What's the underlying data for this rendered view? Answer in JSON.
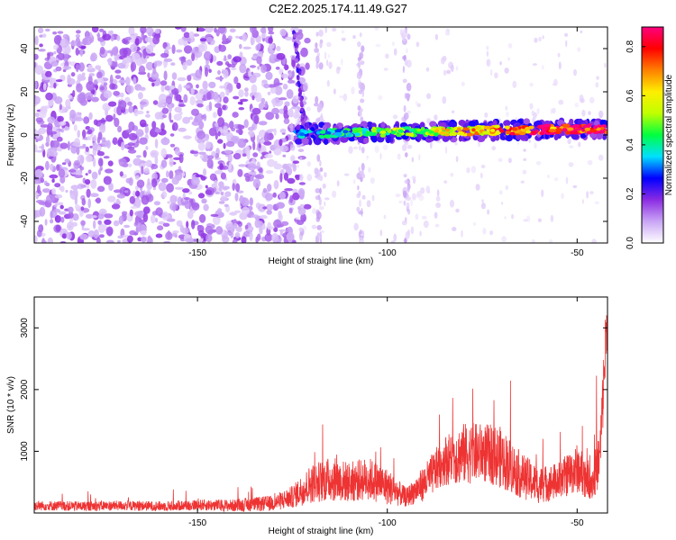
{
  "title": "C2E2.2025.174.11.49.G27",
  "chart_data": [
    {
      "type": "heatmap",
      "xlabel": "Height of straight line (km)",
      "ylabel": "Frequency (Hz)",
      "xlim": [
        -193,
        -42
      ],
      "ylim": [
        -50,
        50
      ],
      "x_ticks": [
        "-150",
        "-100",
        "-50"
      ],
      "y_ticks": [
        "-40",
        "-20",
        "0",
        "20",
        "40"
      ],
      "colorbar": {
        "label": "Normalized spectral amplitude",
        "range": [
          0.0,
          0.88
        ],
        "ticks": [
          "0.0",
          "0.2",
          "0.4",
          "0.6",
          "0.8"
        ],
        "colors": [
          "#ffffff",
          "#c9a5f5",
          "#8b2be2",
          "#0000ff",
          "#00e0ff",
          "#00ff40",
          "#c0ff00",
          "#ffee00",
          "#ff8000",
          "#ff0000",
          "#ff0080"
        ]
      },
      "features": {
        "noise_region_x": [
          -193,
          -124
        ],
        "noise_level": 0.08,
        "signal_band_x": [
          -124,
          -42
        ],
        "signal_band_freq_center": 3,
        "signal_band_halfwidth_hz": 4,
        "signal_peak_amplitude": 0.88,
        "vertical_streaks_x": [
          -118,
          -107,
          -95
        ]
      }
    },
    {
      "type": "line",
      "xlabel": "Height of straight line (km)",
      "ylabel": "SNR (10 * v/v)",
      "xlim": [
        -193,
        -42
      ],
      "ylim": [
        0,
        3500
      ],
      "x_ticks": [
        "-150",
        "-100",
        "-50"
      ],
      "y_ticks": [
        "1000",
        "2000",
        "3000"
      ],
      "color": "#ee3333",
      "x": [
        -193,
        -180,
        -170,
        -160,
        -150,
        -140,
        -130,
        -125,
        -120,
        -115,
        -110,
        -105,
        -100,
        -95,
        -90,
        -85,
        -80,
        -75,
        -70,
        -65,
        -60,
        -55,
        -50,
        -46,
        -44,
        -42
      ],
      "y": [
        120,
        110,
        120,
        110,
        130,
        120,
        160,
        260,
        480,
        550,
        500,
        560,
        430,
        250,
        500,
        850,
        960,
        980,
        900,
        620,
        450,
        520,
        720,
        500,
        900,
        3350
      ],
      "noise_amplitude": [
        80,
        80,
        80,
        80,
        90,
        100,
        130,
        180,
        320,
        360,
        330,
        350,
        300,
        150,
        300,
        400,
        500,
        480,
        500,
        380,
        300,
        300,
        400,
        300,
        500,
        600
      ]
    }
  ]
}
